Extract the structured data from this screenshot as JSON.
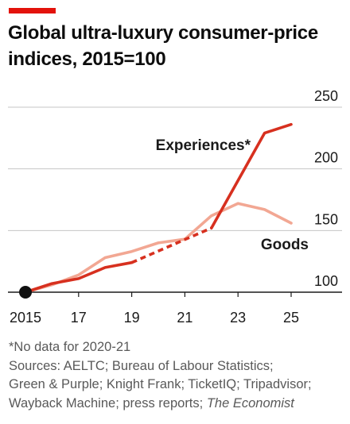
{
  "header": {
    "accent_color": "#e3120b"
  },
  "chart_data": {
    "type": "line",
    "title_line1": "Global ultra-luxury consumer-price",
    "title_line2": "indices, 2015=100",
    "xlabel": "",
    "ylabel": "",
    "xlim": [
      2015,
      2025.5
    ],
    "ylim": [
      100,
      250
    ],
    "x_ticks": [
      2015,
      2017,
      2019,
      2021,
      2023,
      2025
    ],
    "x_tick_labels": [
      "2015",
      "17",
      "19",
      "21",
      "23",
      "25"
    ],
    "y_ticks": [
      100,
      150,
      200,
      250
    ],
    "y_tick_labels": [
      "100",
      "150",
      "200",
      "250"
    ],
    "y_axis_side": "right",
    "grid": "horizontal",
    "series": [
      {
        "name": "Goods",
        "color": "#f2a793",
        "points": [
          [
            2015,
            100
          ],
          [
            2016,
            106
          ],
          [
            2017,
            114
          ],
          [
            2018,
            128
          ],
          [
            2019,
            133
          ],
          [
            2020,
            140
          ],
          [
            2021,
            143
          ],
          [
            2022,
            162
          ],
          [
            2023,
            172
          ],
          [
            2024,
            167
          ],
          [
            2025,
            156
          ]
        ]
      },
      {
        "name": "Experiences*",
        "color": "#d7301f",
        "solid_segments": [
          [
            [
              2015,
              100
            ],
            [
              2016,
              107
            ],
            [
              2017,
              111
            ],
            [
              2018,
              120
            ],
            [
              2019,
              124
            ]
          ],
          [
            [
              2022,
              152
            ],
            [
              2024,
              229
            ],
            [
              2025,
              236
            ]
          ]
        ],
        "dashed_segments": [
          [
            [
              2019,
              124
            ],
            [
              2022,
              152
            ]
          ]
        ],
        "start_marker": [
          2015,
          100
        ],
        "marker_color": "#111111"
      }
    ]
  },
  "notes": {
    "footnote": "*No data for 2020-21",
    "sources_line1": "Sources: AELTC; Bureau of Labour Statistics;",
    "sources_line2": "Green & Purple; Knight Frank; TicketIQ; Tripadvisor;",
    "sources_line3_plain": "Wayback Machine; press reports; ",
    "sources_line3_italic": "The Economist"
  }
}
